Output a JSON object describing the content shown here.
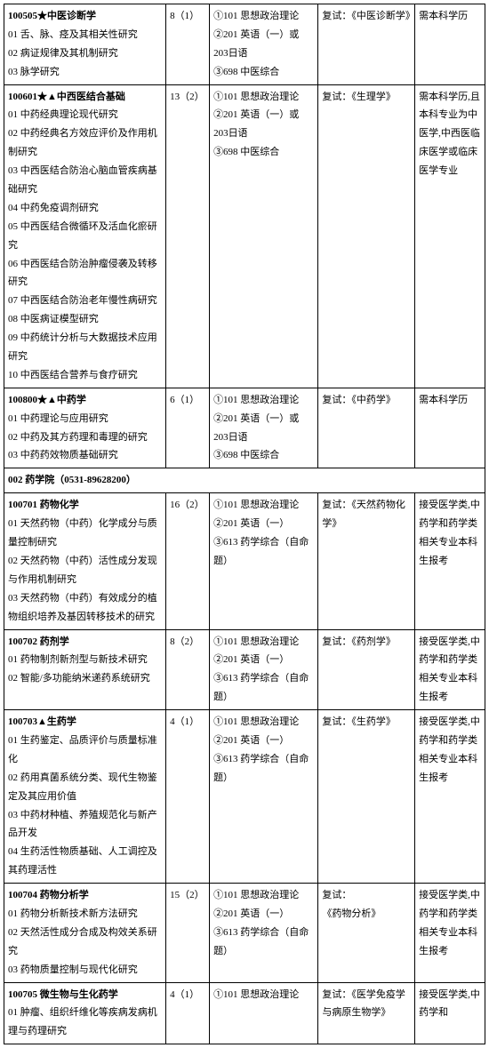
{
  "rows": [
    {
      "code": "100505★中医诊断学",
      "directions": [
        "01 舌、脉、痉及其相关性研究",
        "02 病证规律及其机制研究",
        "03 脉学研究"
      ],
      "quota": "8（1）",
      "exam": "①101 思想政治理论\n②201 英语（一）或 203日语\n③698 中医综合",
      "retest": "复试：《中医诊断学》",
      "remark": "需本科学历"
    },
    {
      "code": "100601★▲中西医结合基础",
      "directions": [
        "01 中药经典理论现代研究",
        "02 中药经典名方效应评价及作用机制研究",
        "03 中西医结合防治心脑血管疾病基础研究",
        "04 中药免疫调剂研究",
        "05 中西医结合微循环及活血化瘀研究",
        "06 中西医结合防治肿瘤侵袭及转移研究",
        "07 中西医结合防治老年慢性病研究",
        "08 中医病证模型研究",
        "09 中药统计分析与大数据技术应用研究",
        "10 中西医结合营养与食疗研究"
      ],
      "quota": "13（2）",
      "exam": "①101 思想政治理论\n②201 英语（一）或 203日语\n③698 中医综合",
      "retest": "复试：《生理学》",
      "remark": "需本科学历,且本科专业为中医学,中西医临床医学或临床医学专业"
    },
    {
      "code": "100800★▲中药学",
      "directions": [
        "01 中药理论与应用研究",
        "02 中药及其方药理和毒理的研究",
        "03 中药药效物质基础研究"
      ],
      "quota": "6（1）",
      "exam": "①101 思想政治理论\n②201 英语（一）或 203日语\n③698 中医综合",
      "retest": "复试：《中药学》",
      "remark": "需本科学历"
    },
    {
      "header": "002 药学院（0531-89628200）"
    },
    {
      "code": "100701 药物化学",
      "directions": [
        "01 天然药物（中药）化学成分与质量控制研究",
        "02 天然药物（中药）活性成分发现与作用机制研究",
        "03 天然药物（中药）有效成分的植物组织培养及基因转移技术的研究"
      ],
      "quota": "16（2）",
      "exam": "①101 思想政治理论\n②201 英语（一）\n③613 药学综合（自命题）",
      "retest": "复试：《天然药物化学》",
      "remark": "接受医学类,中药学和药学类相关专业本科生报考"
    },
    {
      "code": "100702 药剂学",
      "directions": [
        "01 药物制剂新剂型与新技术研究",
        "02 智能/多功能纳米递药系统研究"
      ],
      "quota": "8（2）",
      "exam": "①101 思想政治理论\n②201 英语（一）\n③613 药学综合（自命题）",
      "retest": "复试：《药剂学》",
      "remark": "接受医学类,中药学和药学类相关专业本科生报考"
    },
    {
      "code": "100703▲生药学",
      "directions": [
        "01 生药鉴定、品质评价与质量标准化",
        "02 药用真菌系统分类、现代生物鉴定及其应用价值",
        "03 中药材种植、养殖规范化与新产品开发",
        "04 生药活性物质基础、人工调控及其药理活性"
      ],
      "quota": "4（1）",
      "exam": "①101 思想政治理论\n②201 英语（一）\n③613 药学综合（自命题）",
      "retest": "复试：《生药学》",
      "remark": "接受医学类,中药学和药学类相关专业本科生报考"
    },
    {
      "code": "100704 药物分析学",
      "directions": [
        "01 药物分析新技术新方法研究",
        "02 天然活性成分合成及构效关系研究",
        "03 药物质量控制与现代化研究"
      ],
      "quota": "15（2）",
      "exam": "①101 思想政治理论\n②201 英语（一）\n③613 药学综合（自命题）",
      "retest": "复试：\n《药物分析》",
      "remark": "接受医学类,中药学和药学类相关专业本科生报考"
    },
    {
      "code": "100705 微生物与生化药学",
      "directions": [
        "01 肿瘤、组织纤维化等疾病发病机理与药理研究"
      ],
      "quota": "4（1）",
      "exam": "①101 思想政治理论",
      "retest": "复试：《医学免疫学与病原生物学》",
      "remark": "接受医学类,中药学和"
    }
  ]
}
